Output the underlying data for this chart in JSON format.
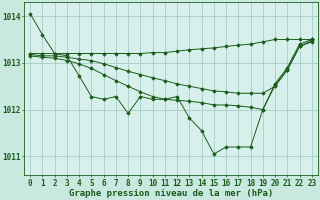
{
  "background_color": "#c8e8e0",
  "plot_bg_color": "#d8f0ec",
  "grid_color": "#a8ccc8",
  "line_color": "#1a5c1a",
  "title": "Graphe pression niveau de la mer (hPa)",
  "ylim": [
    1010.6,
    1014.3
  ],
  "xlim": [
    -0.5,
    23.5
  ],
  "yticks": [
    1011,
    1012,
    1013,
    1014
  ],
  "xticks": [
    0,
    1,
    2,
    3,
    4,
    5,
    6,
    7,
    8,
    9,
    10,
    11,
    12,
    13,
    14,
    15,
    16,
    17,
    18,
    19,
    20,
    21,
    22,
    23
  ],
  "series": [
    [
      1014.05,
      1013.6,
      1013.2,
      1013.15,
      1012.72,
      1012.28,
      1012.22,
      1012.28,
      1011.92,
      1012.28,
      1012.22,
      1012.22,
      1012.28,
      1011.82,
      1011.55,
      1011.05,
      1011.2,
      1011.2,
      1011.2,
      1012.0,
      1012.55,
      1012.9,
      1013.4,
      1013.5
    ],
    [
      1013.2,
      1013.2,
      1013.2,
      1013.2,
      1013.2,
      1013.2,
      1013.2,
      1013.2,
      1013.2,
      1013.2,
      1013.22,
      1013.22,
      1013.25,
      1013.28,
      1013.3,
      1013.32,
      1013.35,
      1013.38,
      1013.4,
      1013.45,
      1013.5,
      1013.5,
      1013.5,
      1013.5
    ],
    [
      1013.18,
      1013.15,
      1013.15,
      1013.12,
      1013.08,
      1013.05,
      1012.98,
      1012.9,
      1012.82,
      1012.75,
      1012.68,
      1012.62,
      1012.55,
      1012.5,
      1012.45,
      1012.4,
      1012.38,
      1012.35,
      1012.35,
      1012.35,
      1012.5,
      1012.85,
      1013.35,
      1013.48
    ],
    [
      1013.15,
      1013.12,
      1013.1,
      1013.05,
      1012.98,
      1012.88,
      1012.75,
      1012.62,
      1012.5,
      1012.38,
      1012.28,
      1012.22,
      1012.2,
      1012.18,
      1012.15,
      1012.1,
      1012.1,
      1012.08,
      1012.05,
      1012.0,
      1012.52,
      1012.85,
      1013.35,
      1013.45
    ]
  ],
  "tick_fontsize": 5.5,
  "title_fontsize": 6.5
}
